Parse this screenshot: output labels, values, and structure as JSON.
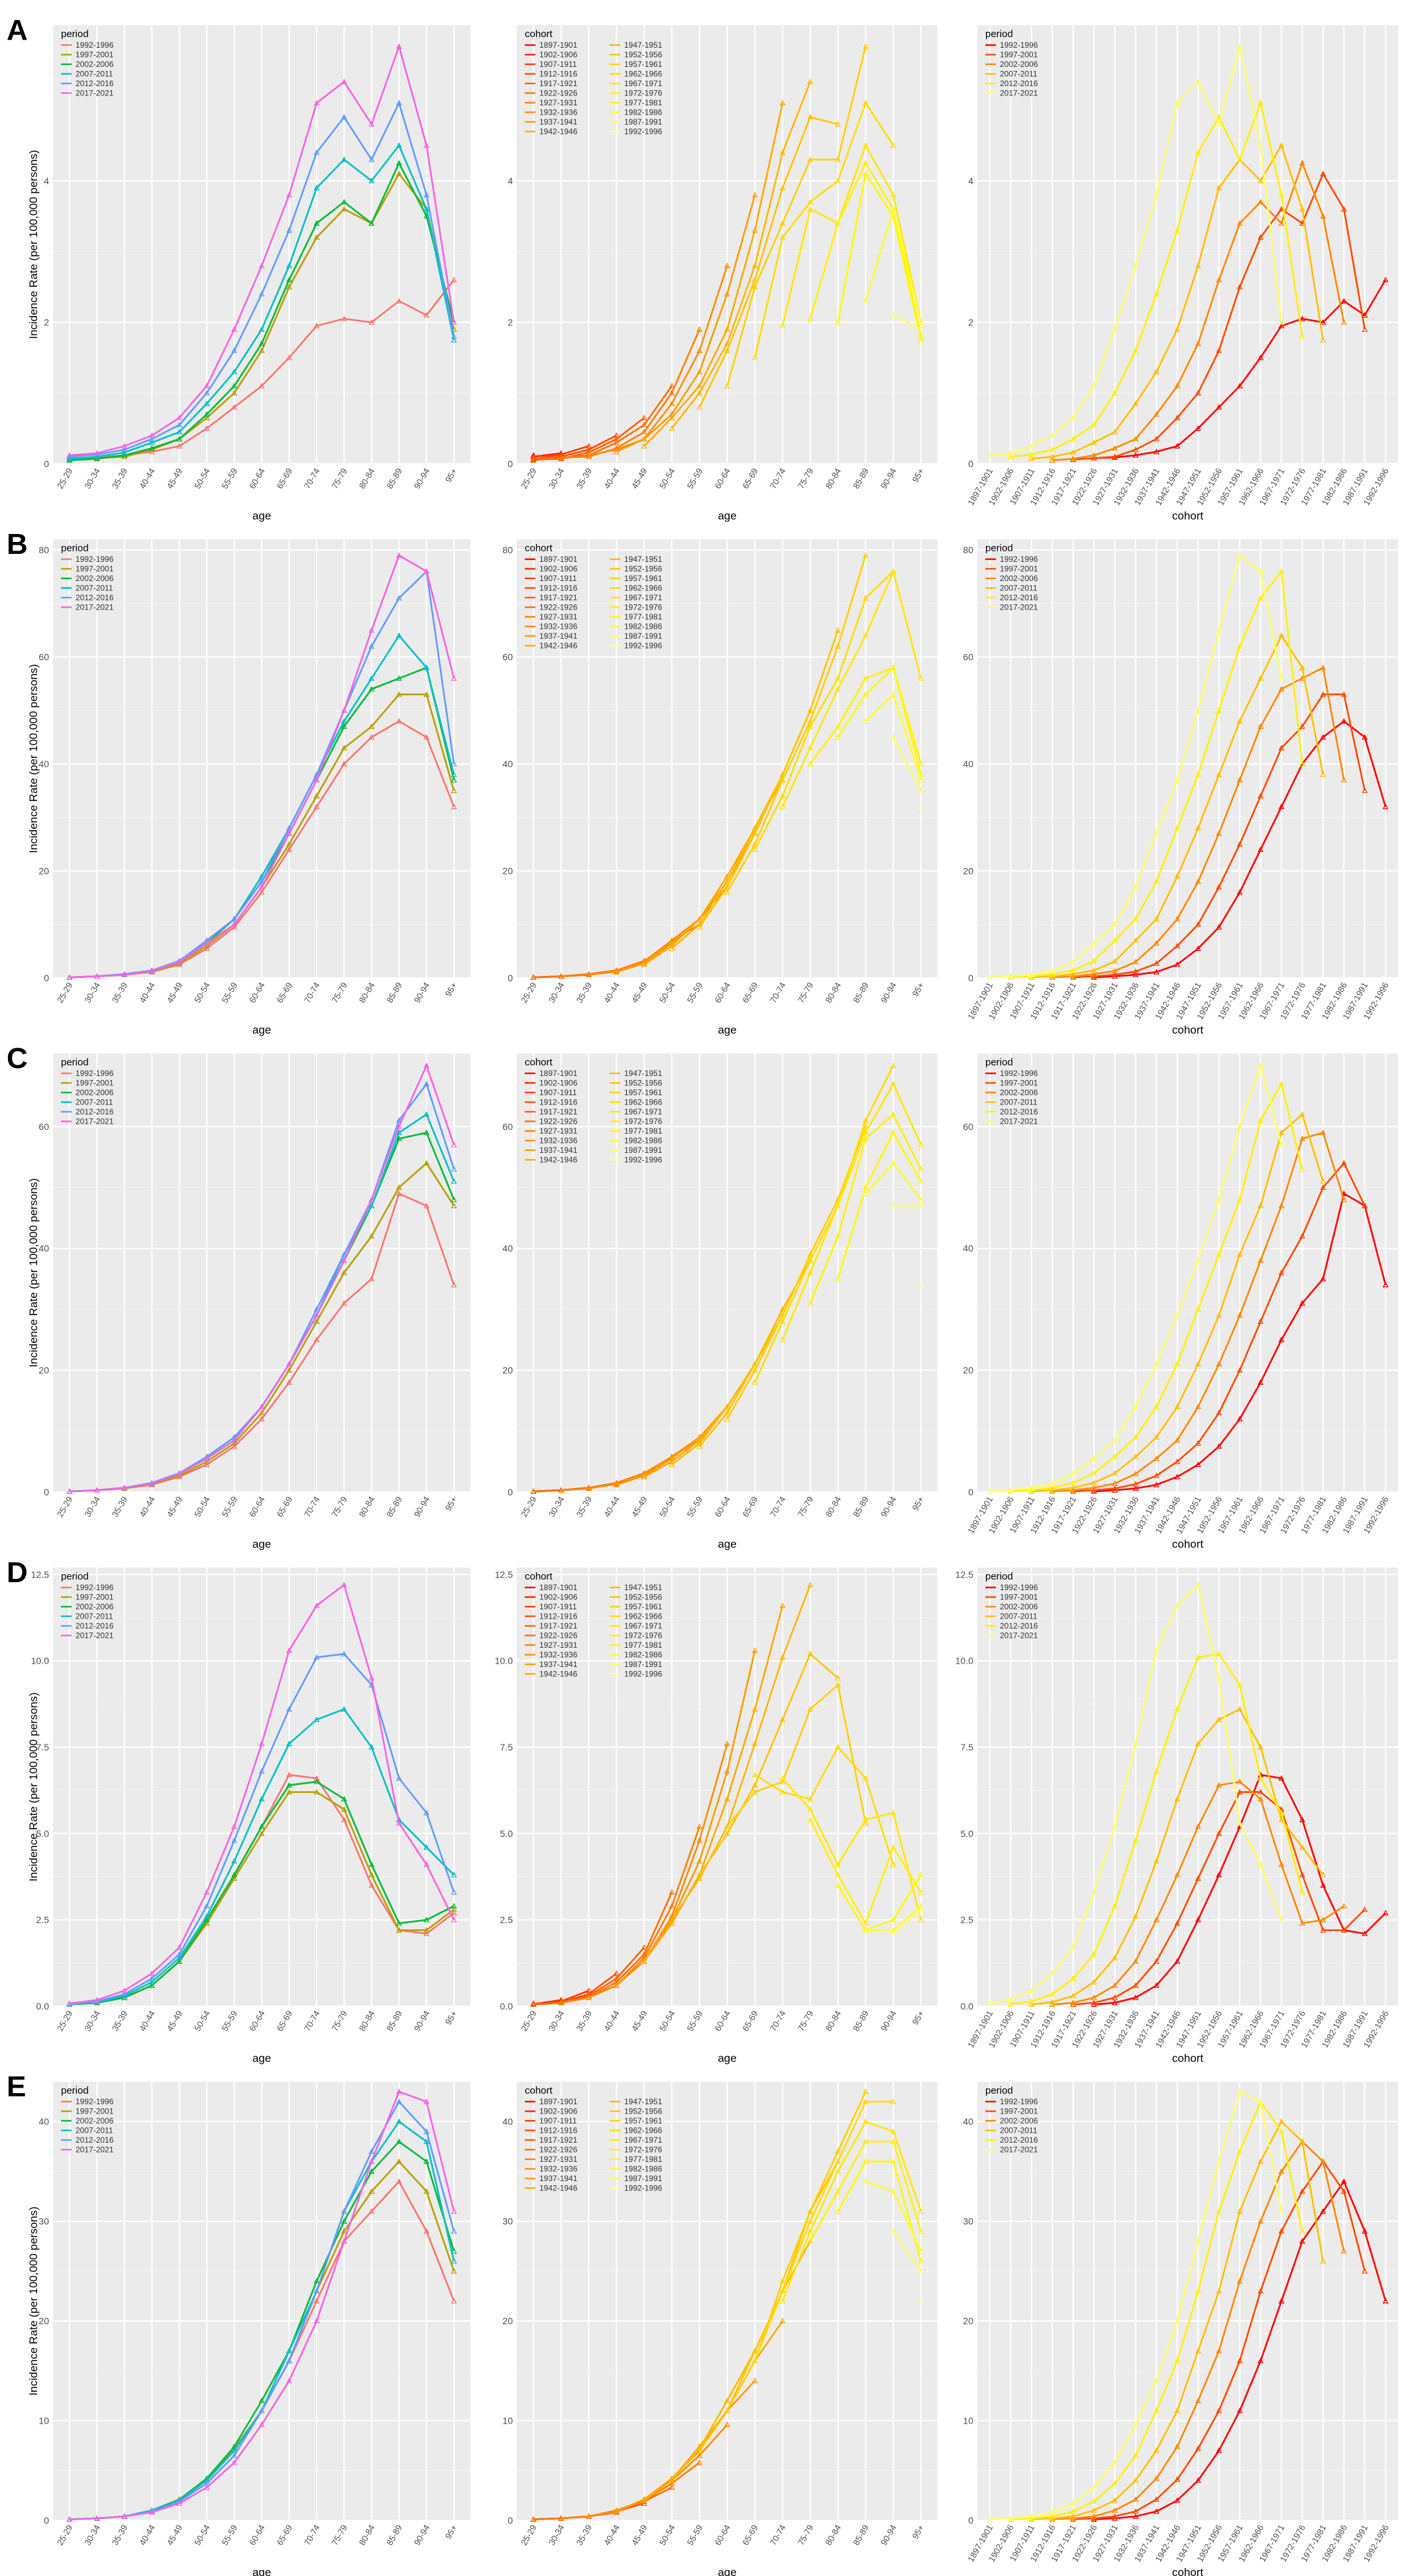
{
  "figure": {
    "ylabel": "Incidence Rate (per 100,000 persons)",
    "age_groups": [
      "25-29",
      "30-34",
      "35-39",
      "40-44",
      "45-49",
      "50-54",
      "55-59",
      "60-64",
      "65-69",
      "70-74",
      "75-79",
      "80-84",
      "85-89",
      "90-94",
      "95+"
    ],
    "cohorts": [
      "1897-1901",
      "1902-1906",
      "1907-1911",
      "1912-1916",
      "1917-1921",
      "1922-1926",
      "1927-1931",
      "1932-1936",
      "1937-1941",
      "1942-1946",
      "1947-1951",
      "1952-1956",
      "1957-1961",
      "1962-1966",
      "1967-1971",
      "1972-1976",
      "1977-1981",
      "1982-1986",
      "1987-1991",
      "1992-1996"
    ],
    "periods": [
      "1992-1996",
      "1997-2001",
      "2002-2006",
      "2007-2011",
      "2012-2016",
      "2017-2021"
    ],
    "period_colors": [
      "#f8766d",
      "#b79f00",
      "#00ba38",
      "#00bfc4",
      "#619cff",
      "#f564e3"
    ],
    "cohort_palette": [
      "#ff0000",
      "#ff2400",
      "#ff3a00",
      "#ff4e00",
      "#ff6000",
      "#ff7000",
      "#ff8000",
      "#ff8e00",
      "#ff9c00",
      "#ffaa00",
      "#ffb800",
      "#ffc400",
      "#ffd000",
      "#ffdc00",
      "#ffe700",
      "#fff100",
      "#fffa00",
      "#ffff33",
      "#ffff66",
      "#ffff99"
    ],
    "panel_palette": [
      "#ff0000",
      "#ff4a00",
      "#ff8800",
      "#ffbf00",
      "#fff000",
      "#ffff66"
    ],
    "x_axis_labels": {
      "age": "age",
      "cohort": "cohort"
    },
    "legend_titles": {
      "period": "period",
      "cohort": "cohort"
    }
  },
  "chart_data": [
    {
      "type": "line",
      "panel_label": "A",
      "ylim": [
        0,
        6.2
      ],
      "yticks": [
        0,
        2,
        4
      ],
      "series": [
        {
          "name": "1992-1996",
          "values": [
            0.08,
            0.09,
            0.12,
            0.17,
            0.25,
            0.5,
            0.8,
            1.1,
            1.5,
            1.95,
            2.05,
            2.0,
            2.3,
            2.1,
            2.6
          ]
        },
        {
          "name": "1997-2001",
          "values": [
            0.06,
            0.08,
            0.1,
            0.2,
            0.35,
            0.65,
            1.0,
            1.6,
            2.5,
            3.2,
            3.6,
            3.4,
            4.1,
            3.6,
            1.9
          ]
        },
        {
          "name": "2002-2006",
          "values": [
            0.05,
            0.07,
            0.12,
            0.22,
            0.35,
            0.7,
            1.1,
            1.7,
            2.6,
            3.4,
            3.7,
            3.4,
            4.25,
            3.5,
            2.0
          ]
        },
        {
          "name": "2007-2011",
          "values": [
            0.07,
            0.1,
            0.16,
            0.3,
            0.45,
            0.85,
            1.3,
            1.9,
            2.8,
            3.9,
            4.3,
            4.0,
            4.5,
            3.6,
            1.75
          ]
        },
        {
          "name": "2012-2016",
          "values": [
            0.1,
            0.13,
            0.2,
            0.35,
            0.55,
            1.0,
            1.6,
            2.4,
            3.3,
            4.4,
            4.9,
            4.3,
            5.1,
            3.8,
            1.8
          ]
        },
        {
          "name": "2017-2021",
          "values": [
            0.12,
            0.15,
            0.25,
            0.4,
            0.65,
            1.1,
            1.9,
            2.8,
            3.8,
            5.1,
            5.4,
            4.8,
            5.9,
            4.5,
            2.0
          ]
        }
      ]
    },
    {
      "type": "line",
      "panel_label": "B",
      "ylim": [
        0,
        82
      ],
      "yticks": [
        0,
        20,
        40,
        60,
        80
      ],
      "series": [
        {
          "name": "1992-1996",
          "values": [
            0.1,
            0.3,
            0.6,
            1.1,
            2.5,
            5.5,
            9.5,
            16,
            24,
            32,
            40,
            45,
            48,
            45,
            32
          ]
        },
        {
          "name": "1997-2001",
          "values": [
            0.1,
            0.3,
            0.6,
            1.2,
            2.7,
            6.0,
            10,
            17,
            25,
            34,
            43,
            47,
            53,
            53,
            35
          ]
        },
        {
          "name": "2002-2006",
          "values": [
            0.1,
            0.3,
            0.7,
            1.3,
            3.0,
            6.5,
            11,
            18,
            27,
            37,
            47,
            54,
            56,
            58,
            37
          ]
        },
        {
          "name": "2007-2011",
          "values": [
            0.1,
            0.3,
            0.7,
            1.4,
            3.1,
            7.0,
            11,
            19,
            28,
            38,
            48,
            56,
            64,
            58,
            38
          ]
        },
        {
          "name": "2012-2016",
          "values": [
            0.1,
            0.3,
            0.7,
            1.4,
            3.2,
            7.0,
            11,
            18,
            28,
            38,
            50,
            62,
            71,
            76,
            40
          ]
        },
        {
          "name": "2017-2021",
          "values": [
            0.1,
            0.3,
            0.6,
            1.3,
            3.0,
            6.5,
            10,
            17,
            27,
            37,
            50,
            65,
            79,
            76,
            56
          ]
        }
      ]
    },
    {
      "type": "line",
      "panel_label": "C",
      "ylim": [
        0,
        72
      ],
      "yticks": [
        0,
        20,
        40,
        60
      ],
      "series": [
        {
          "name": "1992-1996",
          "values": [
            0.1,
            0.3,
            0.6,
            1.2,
            2.5,
            4.5,
            7.5,
            12,
            18,
            25,
            31,
            35,
            49,
            47,
            34
          ]
        },
        {
          "name": "1997-2001",
          "values": [
            0.1,
            0.3,
            0.6,
            1.3,
            2.7,
            5.0,
            8.0,
            13,
            20,
            28,
            36,
            42,
            50,
            54,
            47
          ]
        },
        {
          "name": "2002-2006",
          "values": [
            0.1,
            0.3,
            0.7,
            1.4,
            3.0,
            5.5,
            8.5,
            14,
            21,
            29,
            38,
            47,
            58,
            59,
            48
          ]
        },
        {
          "name": "2007-2011",
          "values": [
            0.1,
            0.3,
            0.7,
            1.5,
            3.1,
            5.8,
            9.0,
            14,
            21,
            29,
            39,
            47,
            59,
            62,
            51
          ]
        },
        {
          "name": "2012-2016",
          "values": [
            0.1,
            0.3,
            0.7,
            1.5,
            3.1,
            5.8,
            9.0,
            14,
            21,
            30,
            39,
            48,
            61,
            67,
            53
          ]
        },
        {
          "name": "2017-2021",
          "values": [
            0.1,
            0.3,
            0.7,
            1.4,
            3.0,
            5.5,
            8.5,
            14,
            21,
            29,
            38,
            48,
            60,
            70,
            57
          ]
        }
      ]
    },
    {
      "type": "line",
      "panel_label": "D",
      "ylim": [
        0,
        12.7
      ],
      "yticks": [
        0,
        2.5,
        5.0,
        7.5,
        10.0,
        12.5
      ],
      "ytick_labels": [
        "0.0",
        "2.5",
        "5.0",
        "7.5",
        "10.0",
        "12.5"
      ],
      "series": [
        {
          "name": "1992-1996",
          "values": [
            0.05,
            0.1,
            0.25,
            0.6,
            1.3,
            2.5,
            3.8,
            5.2,
            6.7,
            6.6,
            5.4,
            3.5,
            2.2,
            2.1,
            2.7
          ]
        },
        {
          "name": "1997-2001",
          "values": [
            0.05,
            0.1,
            0.25,
            0.6,
            1.3,
            2.4,
            3.7,
            5.0,
            6.2,
            6.2,
            5.7,
            3.8,
            2.2,
            2.2,
            2.8
          ]
        },
        {
          "name": "2002-2006",
          "values": [
            0.05,
            0.1,
            0.25,
            0.6,
            1.3,
            2.5,
            3.8,
            5.2,
            6.4,
            6.5,
            6.0,
            4.1,
            2.4,
            2.5,
            2.9
          ]
        },
        {
          "name": "2007-2011",
          "values": [
            0.05,
            0.12,
            0.3,
            0.7,
            1.4,
            2.6,
            4.2,
            6.0,
            7.6,
            8.3,
            8.6,
            7.5,
            5.4,
            4.6,
            3.8
          ]
        },
        {
          "name": "2012-2016",
          "values": [
            0.06,
            0.14,
            0.35,
            0.8,
            1.5,
            2.9,
            4.8,
            6.8,
            8.6,
            10.1,
            10.2,
            9.3,
            6.6,
            5.6,
            3.3
          ]
        },
        {
          "name": "2017-2021",
          "values": [
            0.08,
            0.18,
            0.45,
            0.95,
            1.7,
            3.3,
            5.2,
            7.6,
            10.3,
            11.6,
            12.2,
            9.5,
            5.3,
            4.1,
            2.5
          ]
        }
      ]
    },
    {
      "type": "line",
      "panel_label": "E",
      "ylim": [
        0,
        44
      ],
      "yticks": [
        0,
        10,
        20,
        30,
        40
      ],
      "series": [
        {
          "name": "1992-1996",
          "values": [
            0.1,
            0.2,
            0.4,
            0.9,
            2.0,
            4.0,
            7.0,
            11,
            16,
            22,
            28,
            31,
            34,
            29,
            22
          ]
        },
        {
          "name": "1997-2001",
          "values": [
            0.1,
            0.2,
            0.4,
            0.9,
            2.1,
            4.1,
            7.2,
            11,
            16,
            23,
            29,
            33,
            36,
            33,
            25
          ]
        },
        {
          "name": "2002-2006",
          "values": [
            0.1,
            0.2,
            0.4,
            1.0,
            2.1,
            4.2,
            7.4,
            12,
            17,
            24,
            30,
            35,
            38,
            36,
            27
          ]
        },
        {
          "name": "2007-2011",
          "values": [
            0.1,
            0.2,
            0.4,
            1.0,
            2.0,
            4.0,
            7.0,
            11,
            17,
            23,
            31,
            36,
            40,
            38,
            26
          ]
        },
        {
          "name": "2012-2016",
          "values": [
            0.1,
            0.2,
            0.4,
            0.9,
            1.9,
            3.7,
            6.5,
            11,
            16,
            23,
            31,
            37,
            42,
            39,
            29
          ]
        },
        {
          "name": "2017-2021",
          "values": [
            0.1,
            0.2,
            0.4,
            0.8,
            1.7,
            3.3,
            5.8,
            9.6,
            14,
            20,
            28,
            36,
            43,
            42,
            31
          ]
        }
      ]
    }
  ]
}
